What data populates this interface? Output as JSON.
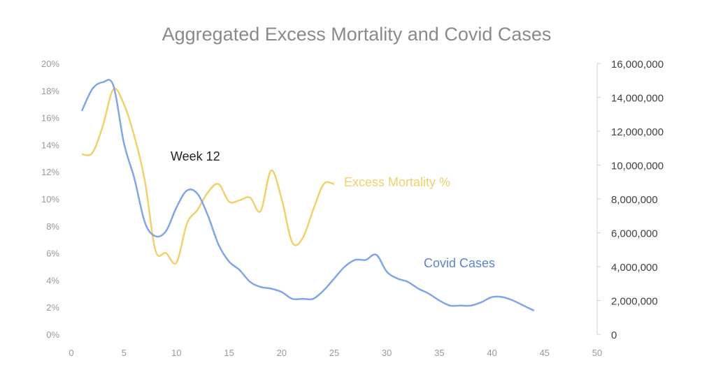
{
  "chart_data": {
    "type": "line",
    "title": "Aggregated Excess Mortality and Covid Cases",
    "x_ticks": [
      "0",
      "5",
      "10",
      "15",
      "20",
      "25",
      "30",
      "35",
      "40",
      "45",
      "50"
    ],
    "xlim": [
      0,
      50
    ],
    "y_left_ticks": [
      "0%",
      "2%",
      "4%",
      "6%",
      "8%",
      "10%",
      "12%",
      "14%",
      "16%",
      "18%",
      "20%"
    ],
    "y_left_lim": [
      0,
      20
    ],
    "y_right_ticks": [
      "0",
      "2,000,000",
      "4,000,000",
      "6,000,000",
      "8,000,000",
      "10,000,000",
      "12,000,000",
      "14,000,000",
      "16,000,000"
    ],
    "y_right_lim": [
      0,
      16000000
    ],
    "grid": false,
    "annotation": "Week 12",
    "series": [
      {
        "name": "Excess Mortality %",
        "axis": "left",
        "color": "#f2d06b",
        "x": [
          1,
          2,
          3,
          4,
          5,
          6,
          7,
          8,
          9,
          10,
          11,
          12,
          13,
          14,
          15,
          16,
          17,
          18,
          19,
          20,
          21,
          22,
          23,
          24,
          25
        ],
        "values": [
          13.3,
          13.4,
          15.4,
          18.1,
          17.0,
          14.6,
          11.3,
          6.2,
          6.0,
          5.3,
          8.2,
          9.2,
          10.5,
          11.1,
          9.8,
          9.9,
          10.1,
          9.1,
          12.1,
          10.0,
          6.8,
          7.1,
          9.2,
          11.1,
          11.1
        ]
      },
      {
        "name": "Covid Cases",
        "axis": "right",
        "color": "#7ea6e8",
        "label_color": "#5b83cc",
        "x": [
          1,
          2,
          3,
          4,
          5,
          6,
          7,
          8,
          9,
          10,
          11,
          12,
          13,
          14,
          15,
          16,
          17,
          18,
          19,
          20,
          21,
          22,
          23,
          24,
          25,
          26,
          27,
          28,
          29,
          30,
          31,
          32,
          33,
          34,
          35,
          36,
          37,
          38,
          39,
          40,
          41,
          42,
          43,
          44
        ],
        "values": [
          13200000,
          14500000,
          14900000,
          14700000,
          11300000,
          9200000,
          6600000,
          5800000,
          6100000,
          7500000,
          8500000,
          8300000,
          7000000,
          5300000,
          4300000,
          3800000,
          3100000,
          2800000,
          2700000,
          2500000,
          2100000,
          2100000,
          2100000,
          2600000,
          3300000,
          4000000,
          4400000,
          4400000,
          4700000,
          3700000,
          3300000,
          3100000,
          2700000,
          2400000,
          2000000,
          1700000,
          1700000,
          1700000,
          1900000,
          2200000,
          2200000,
          2000000,
          1700000,
          1400000
        ]
      }
    ]
  }
}
